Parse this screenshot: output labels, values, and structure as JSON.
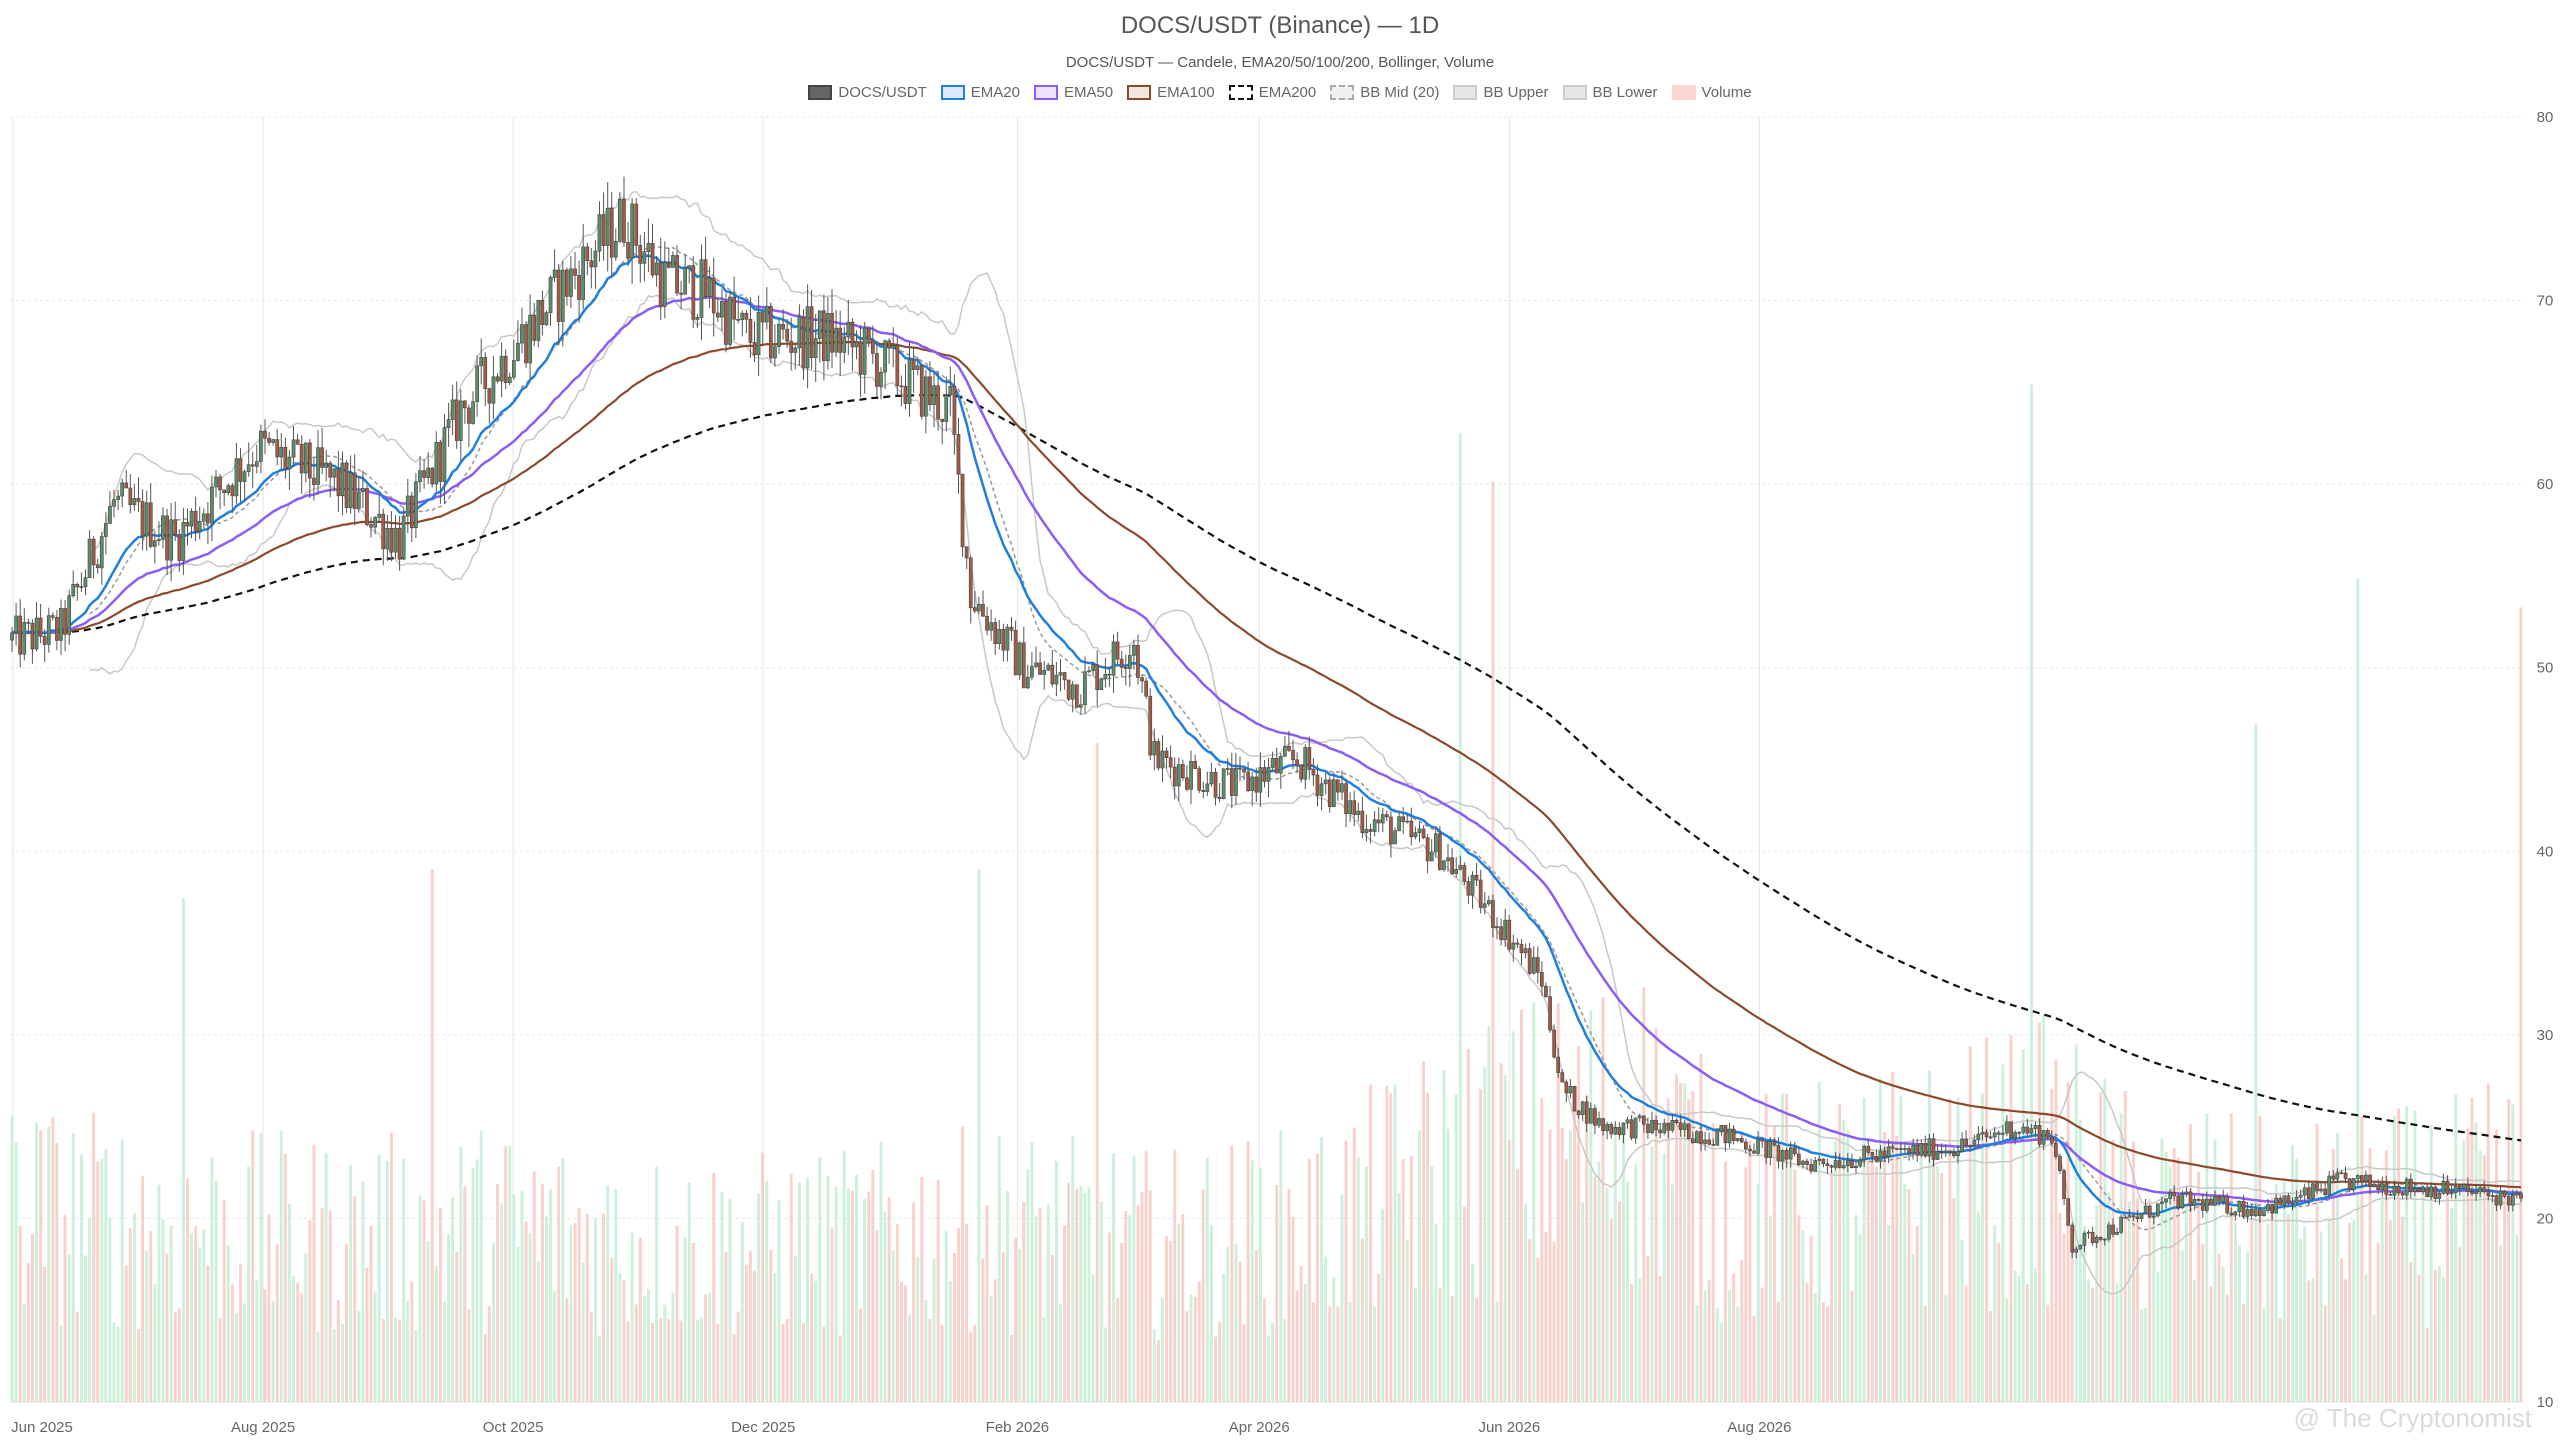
{
  "chart_data": {
    "type": "candlestick",
    "title": "DOCS/USDT (Binance) — 1D",
    "subtitle": "DOCS/USDT — Candele, EMA20/50/100/200, Bollinger, Volume",
    "legend": [
      {
        "label": "DOCS/USDT",
        "fill": "#666666",
        "border": "#444444",
        "style": "solid"
      },
      {
        "label": "EMA20",
        "fill": "#dbeafc",
        "border": "#1f7fe0",
        "style": "solid"
      },
      {
        "label": "EMA50",
        "fill": "#ece3fb",
        "border": "#8b5cf6",
        "style": "solid"
      },
      {
        "label": "EMA100",
        "fill": "#f3e6dc",
        "border": "#8b4a2b",
        "style": "solid"
      },
      {
        "label": "EMA200",
        "fill": "#ffffff",
        "border": "#111111",
        "style": "dashed"
      },
      {
        "label": "BB Mid (20)",
        "fill": "#f0f0f0",
        "border": "#aaaaaa",
        "style": "dashed"
      },
      {
        "label": "BB Upper",
        "fill": "#e6e6e6",
        "border": "#cccccc",
        "style": "solid"
      },
      {
        "label": "BB Lower",
        "fill": "#e6e6e6",
        "border": "#cccccc",
        "style": "solid"
      },
      {
        "label": "Volume",
        "fill": "#fbd5d0",
        "border": "#fbd5d0",
        "style": "solid"
      }
    ],
    "x_ticks": [
      "Jun 2025",
      "Aug 2025",
      "Oct 2025",
      "Dec 2025",
      "Feb 2026",
      "Apr 2026",
      "Jun 2026",
      "Aug 2026"
    ],
    "y_ticks": [
      10,
      20,
      30,
      40,
      50,
      60,
      70,
      80
    ],
    "ylim": [
      10,
      80
    ],
    "y_axis_side": "right",
    "grid": true,
    "legend_position": "top-center",
    "colors": {
      "up": "#5a8f69",
      "down": "#a65a43",
      "vol_up": "#bfeccf",
      "vol_down": "#f9c4bd",
      "ema20": "#1f7fe0",
      "ema50": "#8b5cf6",
      "ema100": "#8b4a2b",
      "ema200": "#111111",
      "bb_mid": "#999999",
      "bb_band": "#c8c8c8"
    },
    "close_keypoints": [
      [
        0,
        51.5
      ],
      [
        12,
        52
      ],
      [
        25,
        59
      ],
      [
        40,
        57
      ],
      [
        60,
        62
      ],
      [
        80,
        60
      ],
      [
        95,
        57
      ],
      [
        110,
        64
      ],
      [
        125,
        68
      ],
      [
        140,
        72
      ],
      [
        150,
        74.5
      ],
      [
        160,
        71
      ],
      [
        170,
        70.5
      ],
      [
        180,
        68
      ],
      [
        200,
        68
      ],
      [
        210,
        67
      ],
      [
        230,
        64
      ],
      [
        235,
        54
      ],
      [
        248,
        50
      ],
      [
        262,
        49
      ],
      [
        275,
        51.5
      ],
      [
        280,
        45
      ],
      [
        300,
        43.5
      ],
      [
        315,
        45
      ],
      [
        330,
        42
      ],
      [
        350,
        40
      ],
      [
        365,
        36
      ],
      [
        375,
        33
      ],
      [
        380,
        27
      ],
      [
        390,
        25
      ],
      [
        400,
        25
      ],
      [
        420,
        24.5
      ],
      [
        440,
        23
      ],
      [
        460,
        23.5
      ],
      [
        480,
        24
      ],
      [
        490,
        25
      ],
      [
        500,
        24.5
      ],
      [
        505,
        18.5
      ],
      [
        515,
        19.5
      ],
      [
        530,
        21
      ],
      [
        550,
        20.5
      ],
      [
        560,
        21
      ],
      [
        570,
        22
      ],
      [
        600,
        21.5
      ],
      [
        615,
        21
      ]
    ],
    "volume_keypoints": [
      [
        0,
        0.22
      ],
      [
        40,
        0.2
      ],
      [
        80,
        0.19
      ],
      [
        120,
        0.2
      ],
      [
        160,
        0.18
      ],
      [
        200,
        0.18
      ],
      [
        240,
        0.2
      ],
      [
        280,
        0.18
      ],
      [
        320,
        0.2
      ],
      [
        360,
        0.28
      ],
      [
        380,
        0.3
      ],
      [
        400,
        0.32
      ],
      [
        420,
        0.22
      ],
      [
        460,
        0.24
      ],
      [
        500,
        0.28
      ],
      [
        520,
        0.22
      ],
      [
        560,
        0.2
      ],
      [
        600,
        0.22
      ],
      [
        615,
        0.24
      ]
    ],
    "volume_spikes": [
      [
        42,
        0.52
      ],
      [
        103,
        0.55
      ],
      [
        237,
        0.55
      ],
      [
        266,
        0.68
      ],
      [
        355,
        1.0
      ],
      [
        363,
        0.95
      ],
      [
        495,
        1.05
      ],
      [
        550,
        0.7
      ],
      [
        575,
        0.85
      ],
      [
        615,
        0.82
      ]
    ],
    "volume_max": 1.1,
    "n_days": 616
  },
  "watermark": "@ The Cryptonomist"
}
